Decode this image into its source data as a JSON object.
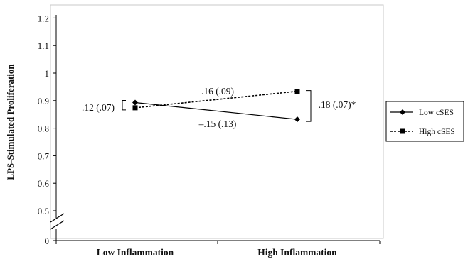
{
  "chart_data": {
    "type": "line",
    "title": "",
    "xlabel": "",
    "ylabel": "LPS-Stimulated Proliferation",
    "categories": [
      "Low Inflammation",
      "High Inflammation"
    ],
    "series": [
      {
        "name": "Low cSES",
        "values": [
          0.893,
          0.832
        ],
        "line_style": "solid",
        "marker": "diamond",
        "color": "#000000"
      },
      {
        "name": "High cSES",
        "values": [
          0.874,
          0.934
        ],
        "line_style": "dashed",
        "marker": "square",
        "color": "#000000"
      }
    ],
    "y_ticks": [
      "0",
      "0.5",
      "0.6",
      "0.7",
      "0.8",
      "0.9",
      "1",
      "1.1",
      "1.2"
    ],
    "ylim": [
      0.45,
      1.25
    ],
    "y_axis_break": true,
    "grid": false,
    "legend_position": "right",
    "annotations": {
      "low_bracket": ".12 (.07)",
      "high_bracket": ".18 (.07)*",
      "high_slope": ".16 (.09)",
      "low_slope": "–.15 (.13)"
    }
  }
}
